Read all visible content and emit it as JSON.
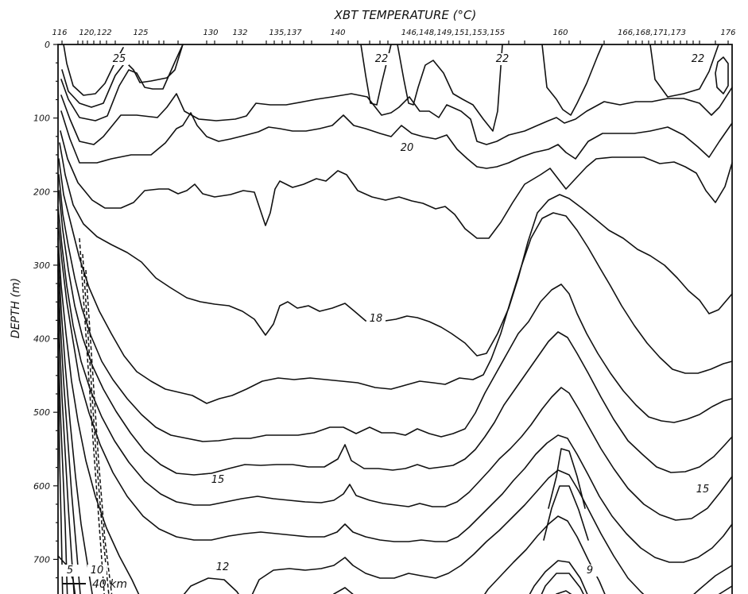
{
  "chart_data": {
    "type": "contour",
    "title": "XBT   TEMPERATURE   (°C)",
    "ylabel": "DEPTH   (m)",
    "xlabel": "",
    "ylim": [
      0,
      760
    ],
    "y_ticks": [
      0,
      100,
      200,
      300,
      400,
      500,
      600,
      700
    ],
    "station_labels": [
      "116",
      "120,122",
      "125",
      "130",
      "132",
      "135,137",
      "140",
      "146,148,149,151,153,155",
      "160",
      "166,168,171,173",
      "176"
    ],
    "contour_labels": [
      {
        "text": "25",
        "value": 25
      },
      {
        "text": "22",
        "value": 22
      },
      {
        "text": "22",
        "value": 22
      },
      {
        "text": "22",
        "value": 22
      },
      {
        "text": "20",
        "value": 20
      },
      {
        "text": "18",
        "value": 18
      },
      {
        "text": "15",
        "value": 15
      },
      {
        "text": "15",
        "value": 15
      },
      {
        "text": "12",
        "value": 12
      },
      {
        "text": "10",
        "value": 10
      },
      {
        "text": "9",
        "value": 9
      },
      {
        "text": "5",
        "value": 5
      }
    ],
    "scale_bar": "40 km",
    "grid": false
  }
}
